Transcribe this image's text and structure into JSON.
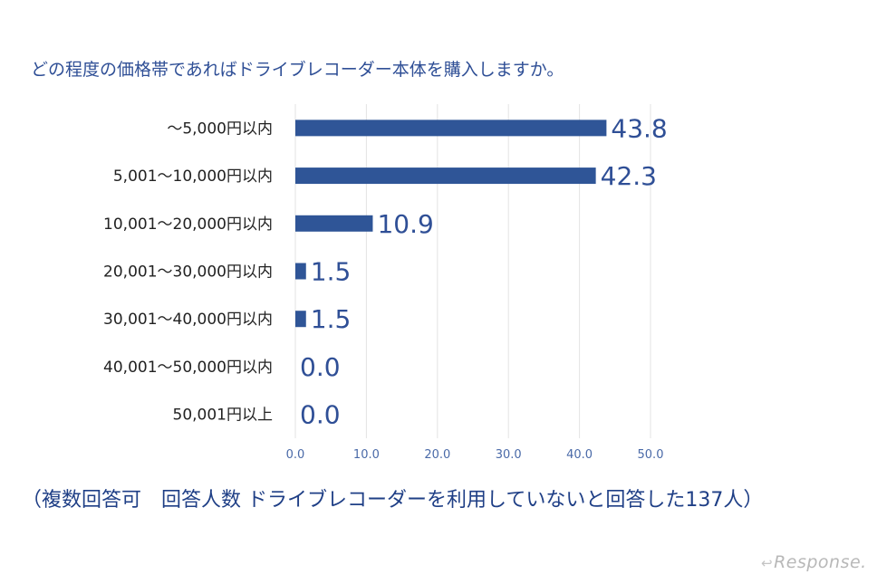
{
  "chart_data": {
    "type": "bar",
    "orientation": "horizontal",
    "title": "どの程度の価格帯であればドライブレコーダー本体を購入しますか。",
    "categories": [
      "〜5,000円以内",
      "5,001〜10,000円以内",
      "10,001〜20,000円以内",
      "20,001〜30,000円以内",
      "30,001〜40,000円以内",
      "40,001〜50,000円以内",
      "50,001円以上"
    ],
    "values": [
      43.8,
      42.3,
      10.9,
      1.5,
      1.5,
      0.0,
      0.0
    ],
    "value_labels": [
      "43.8",
      "42.3",
      "10.9",
      "1.5",
      "1.5",
      "0.0",
      "0.0"
    ],
    "xlim": [
      0,
      50
    ],
    "x_ticks": [
      "0.0",
      "10.0",
      "20.0",
      "30.0",
      "40.0",
      "50.0"
    ],
    "grid": true,
    "bar_color": "#2f5597",
    "label_color": "#2f4f96"
  },
  "footnote": "（複数回答可　回答人数 ドライブレコーダーを利用していないと回答した137人）",
  "logo": {
    "text": "Response.",
    "icon": "response-arrow-icon"
  }
}
